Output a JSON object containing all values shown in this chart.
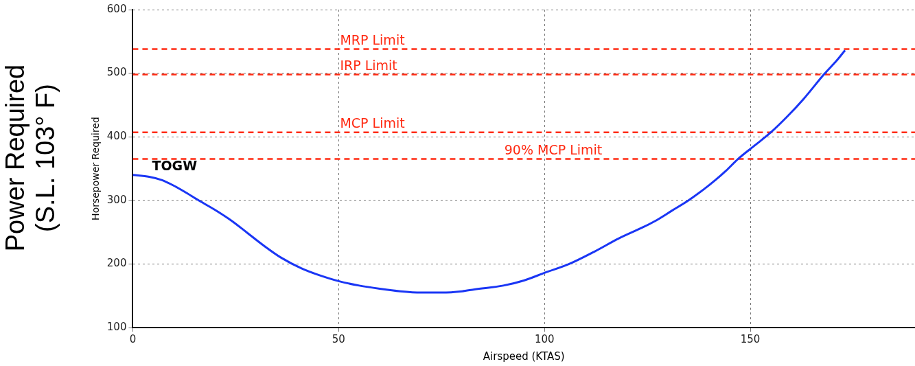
{
  "chart_data": {
    "type": "line",
    "title": "Power Required (S.L. 103° F)",
    "xlabel": "Airspeed (KTAS)",
    "ylabel": "Horsepower Required",
    "xlim": [
      0,
      190
    ],
    "xticks": [
      0,
      50,
      100,
      150
    ],
    "ylim": [
      100,
      600
    ],
    "yticks": [
      100,
      200,
      300,
      400,
      500,
      600
    ],
    "grid": true,
    "legend": false,
    "marker": "none",
    "line_style": "solid",
    "series": [
      {
        "color": "#1a36f5",
        "x": [
          0,
          4,
          7,
          10,
          13,
          16,
          20,
          24,
          28,
          32,
          36,
          41,
          45,
          50,
          55,
          60,
          65,
          70,
          75,
          80,
          83,
          90,
          95,
          100,
          106,
          112,
          118,
          124,
          127,
          131,
          135,
          140,
          144,
          147,
          151,
          155,
          159,
          163,
          168,
          171,
          173
        ],
        "values": [
          340,
          337,
          332,
          323,
          312,
          300,
          285,
          268,
          248,
          228,
          210,
          193,
          183,
          173,
          166,
          161,
          157,
          155,
          155,
          157,
          160,
          166,
          174,
          186,
          200,
          219,
          240,
          258,
          268,
          284,
          300,
          324,
          346,
          365,
          386,
          407,
          432,
          460,
          499,
          520,
          536
        ]
      }
    ],
    "ref_lines": [
      {
        "axis": "y",
        "value": 538,
        "label": "MRP Limit",
        "color": "#ff2a12",
        "line_style": "dashed"
      },
      {
        "axis": "y",
        "value": 498,
        "label": "IRP Limit",
        "color": "#ff2a12",
        "line_style": "dashed"
      },
      {
        "axis": "y",
        "value": 407,
        "label": "MCP Limit",
        "color": "#ff2a12",
        "line_style": "dashed"
      },
      {
        "axis": "y",
        "value": 365,
        "label": "90% MCP Limit",
        "color": "#ff2a12",
        "line_style": "dashed"
      }
    ],
    "annotations": [
      {
        "text": "TOGW",
        "x": 0,
        "y": 340
      }
    ]
  }
}
